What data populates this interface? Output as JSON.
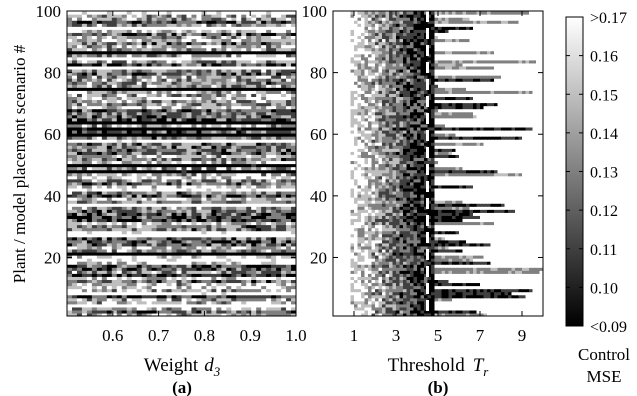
{
  "chart_data": [
    {
      "type": "heatmap",
      "panel": "(a)",
      "xlabel": "Weight",
      "xlabel_symbol": "d",
      "xlabel_subscript": "3",
      "ylabel": "Plant / model placement scenario #",
      "xlim": [
        0.5,
        1.0
      ],
      "ylim": [
        1,
        100
      ],
      "x_ticks": [
        "0.6",
        "0.7",
        "0.8",
        "0.9",
        "1.0"
      ],
      "y_ticks": [
        "20",
        "40",
        "60",
        "80",
        "100"
      ],
      "z": "Control MSE by weight and scenario, contour-filled"
    },
    {
      "type": "heatmap",
      "panel": "(b)",
      "xlabel": "Threshold",
      "xlabel_symbol": "T",
      "xlabel_subscript": "r",
      "xlim": [
        0,
        10
      ],
      "ylim": [
        1,
        100
      ],
      "x_ticks": [
        "1",
        "3",
        "5",
        "7",
        "9"
      ],
      "y_ticks": [
        "20",
        "40",
        "60",
        "80",
        "100"
      ],
      "vertical_marker": {
        "x": 4.5,
        "style": "white-dashed"
      }
    }
  ],
  "colorbar": {
    "label_line1": "Control",
    "label_line2": "MSE",
    "min_label": "<0.09",
    "max_label": ">0.17",
    "ticks": [
      "0.10",
      "0.11",
      "0.12",
      "0.13",
      "0.14",
      "0.15",
      "0.16"
    ],
    "range": [
      0.09,
      0.17
    ],
    "colors": [
      "#000000",
      "#ffffff"
    ]
  }
}
